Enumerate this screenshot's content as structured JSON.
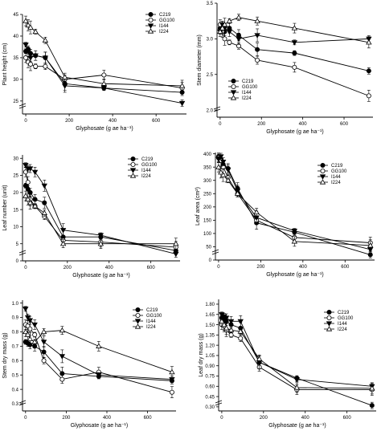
{
  "chart_data": [
    {
      "type": "line",
      "xlabel": "Glyphosate (g ae ha⁻¹)",
      "ylabel": "Plant height (cm)",
      "xlim": [
        -15,
        740
      ],
      "ylim": [
        22,
        45
      ],
      "xticks": [
        0,
        200,
        400,
        600
      ],
      "yticks": [
        25,
        30,
        35,
        40,
        45
      ],
      "ytick_labels": [
        "25",
        "30",
        "35",
        "40",
        "45"
      ],
      "legend_position": "top-right",
      "series": [
        {
          "name": "C219",
          "x": [
            0,
            11,
            22,
            45,
            90,
            180,
            360,
            720
          ],
          "y": [
            36.5,
            37.0,
            36.0,
            35.5,
            35.0,
            29.0,
            28.0,
            27.0
          ]
        },
        {
          "name": "GG100",
          "x": [
            0,
            11,
            22,
            45,
            90,
            180,
            360,
            720
          ],
          "y": [
            35.0,
            34.0,
            33.5,
            33.0,
            33.0,
            30.0,
            31.0,
            28.0
          ]
        },
        {
          "name": "I144",
          "x": [
            0,
            11,
            22,
            45,
            90,
            180,
            360,
            720
          ],
          "y": [
            38.0,
            36.5,
            35.0,
            35.5,
            35.0,
            28.5,
            28.0,
            24.5
          ]
        },
        {
          "name": "I224",
          "x": [
            0,
            11,
            22,
            45,
            90,
            180,
            360,
            720
          ],
          "y": [
            43.5,
            42.5,
            42.0,
            41.0,
            39.0,
            30.5,
            29.0,
            28.5
          ]
        }
      ]
    },
    {
      "type": "line",
      "xlabel": "Glyphosate (g ae ha⁻¹)",
      "ylabel": "Stem diameter (mm)",
      "xlim": [
        -15,
        740
      ],
      "ylim": [
        1.9,
        3.5
      ],
      "xticks": [
        0,
        200,
        400,
        600
      ],
      "yticks": [
        2.0,
        2.5,
        3.0,
        3.5
      ],
      "ytick_labels": [
        "2.0",
        "2.5",
        "3.0",
        "3.5"
      ],
      "legend_position": "middle-left",
      "series": [
        {
          "name": "C219",
          "x": [
            0,
            11,
            22,
            45,
            90,
            180,
            360,
            720
          ],
          "y": [
            3.15,
            3.2,
            3.1,
            3.15,
            3.05,
            2.85,
            2.8,
            2.55
          ]
        },
        {
          "name": "GG100",
          "x": [
            0,
            11,
            22,
            45,
            90,
            180,
            360,
            720
          ],
          "y": [
            3.2,
            3.1,
            3.0,
            2.95,
            2.9,
            2.7,
            2.6,
            2.2
          ]
        },
        {
          "name": "I144",
          "x": [
            0,
            11,
            22,
            45,
            90,
            180,
            360,
            720
          ],
          "y": [
            3.1,
            3.2,
            3.15,
            3.1,
            3.0,
            3.05,
            2.95,
            3.0
          ]
        },
        {
          "name": "I224",
          "x": [
            0,
            11,
            22,
            45,
            90,
            180,
            360,
            720
          ],
          "y": [
            3.1,
            3.15,
            3.2,
            3.25,
            3.3,
            3.25,
            3.15,
            2.95
          ]
        }
      ]
    },
    {
      "type": "line",
      "xlabel": "Glyphosate (g ae ha⁻¹)",
      "ylabel": "Leaf number (unit)",
      "xlim": [
        -15,
        740
      ],
      "ylim": [
        0,
        31
      ],
      "xticks": [
        0,
        200,
        400,
        600
      ],
      "yticks": [
        0,
        5,
        10,
        15,
        20,
        25,
        30
      ],
      "ytick_labels": [
        "0",
        "5",
        "10",
        "15",
        "20",
        "25",
        "30"
      ],
      "legend_position": "top-right",
      "series": [
        {
          "name": "C219",
          "x": [
            0,
            11,
            22,
            45,
            90,
            180,
            360,
            720
          ],
          "y": [
            22,
            21,
            20,
            18,
            17,
            7,
            7,
            3
          ]
        },
        {
          "name": "GG100",
          "x": [
            0,
            11,
            22,
            45,
            90,
            180,
            360,
            720
          ],
          "y": [
            26,
            23,
            18,
            16,
            13,
            6,
            5.5,
            4
          ]
        },
        {
          "name": "I144",
          "x": [
            0,
            11,
            22,
            45,
            90,
            180,
            360,
            720
          ],
          "y": [
            28,
            27,
            27,
            26,
            22,
            9,
            7.5,
            2
          ]
        },
        {
          "name": "I224",
          "x": [
            0,
            11,
            22,
            45,
            90,
            180,
            360,
            720
          ],
          "y": [
            19,
            18,
            17,
            16,
            14,
            5,
            5,
            5
          ]
        }
      ]
    },
    {
      "type": "line",
      "xlabel": "Glyphosate (g ae ha⁻¹)",
      "ylabel": "Leaf area (cm²)",
      "xlim": [
        -15,
        740
      ],
      "ylim": [
        0,
        405
      ],
      "xticks": [
        0,
        200,
        400,
        600
      ],
      "yticks": [
        0,
        50,
        100,
        150,
        200,
        250,
        300,
        350,
        400
      ],
      "ytick_labels": [
        "0",
        "50",
        "100",
        "150",
        "200",
        "250",
        "300",
        "350",
        "400"
      ],
      "legend_position": "top-right",
      "series": [
        {
          "name": "C219",
          "x": [
            0,
            11,
            22,
            45,
            90,
            180,
            360,
            720
          ],
          "y": [
            390,
            380,
            360,
            345,
            270,
            140,
            105,
            20
          ]
        },
        {
          "name": "GG100",
          "x": [
            0,
            11,
            22,
            45,
            90,
            180,
            360,
            720
          ],
          "y": [
            385,
            375,
            350,
            310,
            250,
            150,
            85,
            65
          ]
        },
        {
          "name": "I144",
          "x": [
            0,
            11,
            22,
            45,
            90,
            180,
            360,
            720
          ],
          "y": [
            380,
            390,
            370,
            340,
            260,
            160,
            110,
            40
          ]
        },
        {
          "name": "I224",
          "x": [
            0,
            11,
            22,
            45,
            90,
            180,
            360,
            720
          ],
          "y": [
            350,
            330,
            320,
            300,
            250,
            180,
            70,
            55
          ]
        }
      ]
    },
    {
      "type": "line",
      "xlabel": "Glyphosate (g ae ha⁻¹)",
      "ylabel": "Stem dry mass (g)",
      "xlim": [
        -15,
        740
      ],
      "ylim": [
        0.25,
        1.02
      ],
      "xticks": [
        0,
        200,
        400,
        600
      ],
      "yticks": [
        0.3,
        0.4,
        0.5,
        0.6,
        0.7,
        0.8,
        0.9,
        1.0
      ],
      "ytick_labels": [
        "0.3",
        "0.4",
        "0.5",
        "0.6",
        "0.7",
        "0.8",
        "0.9",
        "1.0"
      ],
      "legend_position": "top-right",
      "series": [
        {
          "name": "C219",
          "x": [
            0,
            11,
            22,
            45,
            90,
            180,
            360,
            720
          ],
          "y": [
            0.73,
            0.72,
            0.71,
            0.7,
            0.66,
            0.51,
            0.49,
            0.46
          ]
        },
        {
          "name": "GG100",
          "x": [
            0,
            11,
            22,
            45,
            90,
            180,
            360,
            720
          ],
          "y": [
            0.85,
            0.84,
            0.82,
            0.78,
            0.6,
            0.47,
            0.52,
            0.38
          ]
        },
        {
          "name": "I144",
          "x": [
            0,
            11,
            22,
            45,
            90,
            180,
            360,
            720
          ],
          "y": [
            0.96,
            0.9,
            0.88,
            0.85,
            0.73,
            0.63,
            0.5,
            0.47
          ]
        },
        {
          "name": "I224",
          "x": [
            0,
            11,
            22,
            45,
            90,
            180,
            360,
            720
          ],
          "y": [
            0.8,
            0.78,
            0.75,
            0.73,
            0.8,
            0.81,
            0.7,
            0.52
          ]
        }
      ]
    },
    {
      "type": "line",
      "xlabel": "Glyphosate (g ae ha⁻¹)",
      "ylabel": "Leaf dry mass (g)",
      "xlim": [
        -15,
        740
      ],
      "ylim": [
        0.24,
        1.87
      ],
      "xticks": [
        0,
        200,
        400,
        600
      ],
      "yticks": [
        0.3,
        0.45,
        0.6,
        0.75,
        0.9,
        1.05,
        1.2,
        1.35,
        1.5,
        1.65,
        1.8
      ],
      "ytick_labels": [
        "0.30",
        "0.45",
        "0.60",
        "0.75",
        "0.90",
        "1.05",
        "1.20",
        "1.35",
        "1.50",
        "1.65",
        "1.80"
      ],
      "legend_position": "top-right",
      "series": [
        {
          "name": "C219",
          "x": [
            0,
            11,
            22,
            45,
            90,
            180,
            360,
            720
          ],
          "y": [
            1.6,
            1.58,
            1.55,
            1.5,
            1.45,
            0.95,
            0.72,
            0.32
          ]
        },
        {
          "name": "GG100",
          "x": [
            0,
            11,
            22,
            45,
            90,
            180,
            360,
            720
          ],
          "y": [
            1.5,
            1.48,
            1.42,
            1.35,
            1.3,
            0.88,
            0.55,
            0.55
          ]
        },
        {
          "name": "I144",
          "x": [
            0,
            11,
            22,
            45,
            90,
            180,
            360,
            720
          ],
          "y": [
            1.65,
            1.62,
            1.6,
            1.55,
            1.55,
            0.95,
            0.7,
            0.6
          ]
        },
        {
          "name": "I224",
          "x": [
            0,
            11,
            22,
            45,
            90,
            180,
            360,
            720
          ],
          "y": [
            1.55,
            1.5,
            1.45,
            1.42,
            1.4,
            1.0,
            0.58,
            0.57
          ]
        }
      ]
    }
  ],
  "markers": {
    "C219": "filled-circle",
    "GG100": "open-circle",
    "I144": "filled-triangle-down",
    "I224": "open-triangle-up"
  },
  "colors": {
    "line": "#000000",
    "background": "#ffffff"
  }
}
